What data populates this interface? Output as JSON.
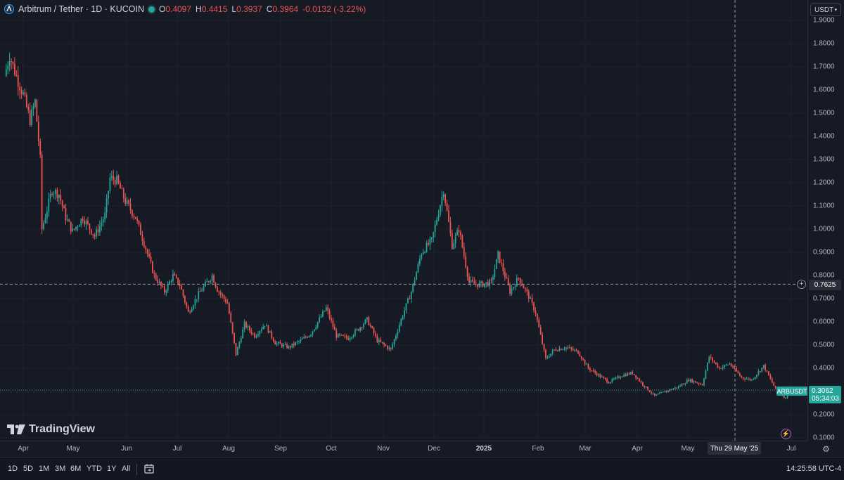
{
  "header": {
    "symbol_title": "Arbitrum / Tether · 1D · KUCOIN",
    "ohlc": [
      {
        "key": "O",
        "value": "0.4097"
      },
      {
        "key": "H",
        "value": "0.4415"
      },
      {
        "key": "L",
        "value": "0.3937"
      },
      {
        "key": "C",
        "value": "0.3964"
      }
    ],
    "change": "-0.0132 (-3.22%)",
    "market_status": "open"
  },
  "price_axis": {
    "currency": "USDT",
    "ticks": [
      "1.9000",
      "1.8000",
      "1.7000",
      "1.6000",
      "1.5000",
      "1.4000",
      "1.3000",
      "1.2000",
      "1.1000",
      "1.0000",
      "0.9000",
      "0.8000",
      "0.7000",
      "0.6000",
      "0.5000",
      "0.4000",
      "0.3000",
      "0.2000",
      "0.1000"
    ],
    "crosshair_price": "0.7625",
    "last_symbol": "ARBUSDT",
    "last_price": "0.3062",
    "countdown": "05:34:03"
  },
  "time_axis": {
    "ticks": [
      {
        "label": "Apr"
      },
      {
        "label": "May"
      },
      {
        "label": "Jun"
      },
      {
        "label": "Jul"
      },
      {
        "label": "Aug"
      },
      {
        "label": "Sep"
      },
      {
        "label": "Oct"
      },
      {
        "label": "Nov"
      },
      {
        "label": "Dec"
      },
      {
        "label": "2025",
        "bold": true
      },
      {
        "label": "Feb"
      },
      {
        "label": "Mar"
      },
      {
        "label": "Apr"
      },
      {
        "label": "May"
      },
      {
        "label": "Jul"
      }
    ],
    "crosshair_date": "Thu 29 May '25"
  },
  "branding": {
    "logo_text": "TradingView"
  },
  "bottom_bar": {
    "ranges": [
      "1D",
      "5D",
      "1M",
      "3M",
      "6M",
      "YTD",
      "1Y",
      "All"
    ],
    "clock": "14:25:58 UTC-4"
  },
  "colors": {
    "up": "#26a69a",
    "down": "#ef5350",
    "background": "#161a25",
    "grid": "#1e222d"
  },
  "chart_data": {
    "type": "candlestick",
    "symbol": "ARBUSDT",
    "interval": "1D",
    "ylim": [
      0.1,
      1.9
    ],
    "price_path": [
      {
        "date": "2024-03-22",
        "price": 1.66
      },
      {
        "date": "2024-03-25",
        "price": 1.75
      },
      {
        "date": "2024-03-28",
        "price": 1.68
      },
      {
        "date": "2024-04-02",
        "price": 1.58
      },
      {
        "date": "2024-04-06",
        "price": 1.47
      },
      {
        "date": "2024-04-09",
        "price": 1.55
      },
      {
        "date": "2024-04-12",
        "price": 1.3
      },
      {
        "date": "2024-04-13",
        "price": 1.0
      },
      {
        "date": "2024-04-19",
        "price": 1.17
      },
      {
        "date": "2024-04-23",
        "price": 1.15
      },
      {
        "date": "2024-04-27",
        "price": 1.05
      },
      {
        "date": "2024-05-01",
        "price": 0.99
      },
      {
        "date": "2024-05-07",
        "price": 1.05
      },
      {
        "date": "2024-05-14",
        "price": 0.97
      },
      {
        "date": "2024-05-20",
        "price": 1.06
      },
      {
        "date": "2024-05-23",
        "price": 1.22
      },
      {
        "date": "2024-05-27",
        "price": 1.21
      },
      {
        "date": "2024-06-01",
        "price": 1.12
      },
      {
        "date": "2024-06-07",
        "price": 1.05
      },
      {
        "date": "2024-06-12",
        "price": 0.94
      },
      {
        "date": "2024-06-18",
        "price": 0.8
      },
      {
        "date": "2024-06-24",
        "price": 0.73
      },
      {
        "date": "2024-06-29",
        "price": 0.8
      },
      {
        "date": "2024-07-03",
        "price": 0.76
      },
      {
        "date": "2024-07-08",
        "price": 0.64
      },
      {
        "date": "2024-07-14",
        "price": 0.72
      },
      {
        "date": "2024-07-22",
        "price": 0.8
      },
      {
        "date": "2024-07-25",
        "price": 0.74
      },
      {
        "date": "2024-07-31",
        "price": 0.68
      },
      {
        "date": "2024-08-05",
        "price": 0.46
      },
      {
        "date": "2024-08-10",
        "price": 0.59
      },
      {
        "date": "2024-08-16",
        "price": 0.54
      },
      {
        "date": "2024-08-22",
        "price": 0.59
      },
      {
        "date": "2024-08-28",
        "price": 0.51
      },
      {
        "date": "2024-09-05",
        "price": 0.49
      },
      {
        "date": "2024-09-12",
        "price": 0.52
      },
      {
        "date": "2024-09-18",
        "price": 0.55
      },
      {
        "date": "2024-09-27",
        "price": 0.66
      },
      {
        "date": "2024-10-03",
        "price": 0.54
      },
      {
        "date": "2024-10-10",
        "price": 0.53
      },
      {
        "date": "2024-10-16",
        "price": 0.57
      },
      {
        "date": "2024-10-21",
        "price": 0.61
      },
      {
        "date": "2024-10-27",
        "price": 0.52
      },
      {
        "date": "2024-11-04",
        "price": 0.48
      },
      {
        "date": "2024-11-10",
        "price": 0.61
      },
      {
        "date": "2024-11-16",
        "price": 0.73
      },
      {
        "date": "2024-11-22",
        "price": 0.9
      },
      {
        "date": "2024-11-28",
        "price": 0.95
      },
      {
        "date": "2024-12-05",
        "price": 1.17
      },
      {
        "date": "2024-12-10",
        "price": 0.93
      },
      {
        "date": "2024-12-14",
        "price": 1.0
      },
      {
        "date": "2024-12-20",
        "price": 0.77
      },
      {
        "date": "2024-12-26",
        "price": 0.76
      },
      {
        "date": "2025-01-02",
        "price": 0.77
      },
      {
        "date": "2025-01-06",
        "price": 0.89
      },
      {
        "date": "2025-01-13",
        "price": 0.73
      },
      {
        "date": "2025-01-18",
        "price": 0.79
      },
      {
        "date": "2025-01-24",
        "price": 0.71
      },
      {
        "date": "2025-01-28",
        "price": 0.64
      },
      {
        "date": "2025-02-03",
        "price": 0.44
      },
      {
        "date": "2025-02-08",
        "price": 0.48
      },
      {
        "date": "2025-02-15",
        "price": 0.49
      },
      {
        "date": "2025-02-22",
        "price": 0.47
      },
      {
        "date": "2025-02-28",
        "price": 0.4
      },
      {
        "date": "2025-03-06",
        "price": 0.37
      },
      {
        "date": "2025-03-12",
        "price": 0.34
      },
      {
        "date": "2025-03-20",
        "price": 0.37
      },
      {
        "date": "2025-03-26",
        "price": 0.38
      },
      {
        "date": "2025-04-01",
        "price": 0.33
      },
      {
        "date": "2025-04-08",
        "price": 0.28
      },
      {
        "date": "2025-04-14",
        "price": 0.3
      },
      {
        "date": "2025-04-22",
        "price": 0.32
      },
      {
        "date": "2025-04-28",
        "price": 0.35
      },
      {
        "date": "2025-05-06",
        "price": 0.33
      },
      {
        "date": "2025-05-10",
        "price": 0.45
      },
      {
        "date": "2025-05-16",
        "price": 0.4
      },
      {
        "date": "2025-05-22",
        "price": 0.42
      },
      {
        "date": "2025-05-29",
        "price": 0.36
      },
      {
        "date": "2025-06-04",
        "price": 0.35
      },
      {
        "date": "2025-06-11",
        "price": 0.41
      },
      {
        "date": "2025-06-18",
        "price": 0.31
      },
      {
        "date": "2025-06-24",
        "price": 0.27
      },
      {
        "date": "2025-06-26",
        "price": 0.31
      }
    ]
  }
}
